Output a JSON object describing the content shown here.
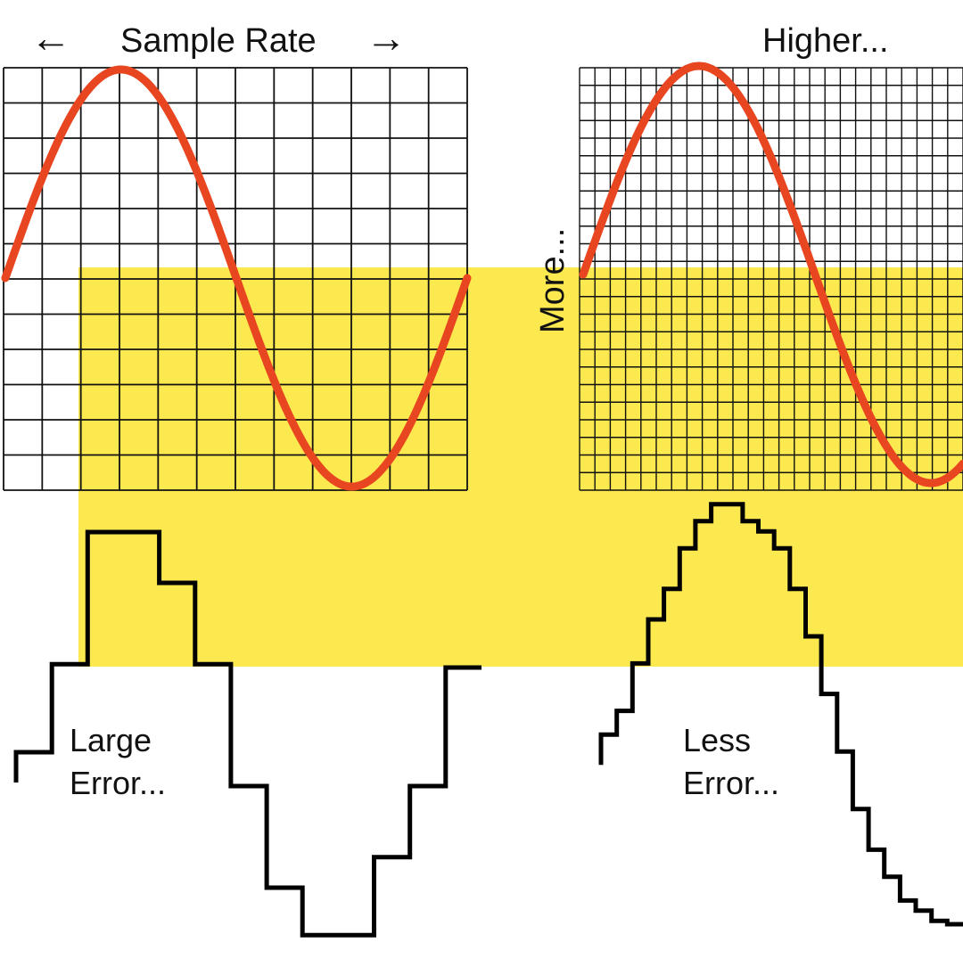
{
  "labels": {
    "sample_rate": "Sample Rate",
    "higher": "Higher...",
    "more": "More...",
    "large_error_line1": "Large",
    "large_error_line2": "Error...",
    "less_error_line1": "Less",
    "less_error_line2": "Error..."
  },
  "arrows": {
    "left": "←",
    "right": "→"
  },
  "colors": {
    "background": "#ffffff",
    "highlight_band": "#fce94f",
    "sine_wave": "#e84620",
    "grid_line": "#111111",
    "staircase": "#000000"
  },
  "panels": [
    {
      "name": "low-resolution",
      "grid_columns": 12,
      "grid_rows": 12,
      "wave_cycles": 1,
      "sample_levels": [
        -0.4,
        0.12,
        0.9,
        0.9,
        0.6,
        0.12,
        -0.6,
        -1.2,
        -1.48,
        -1.48,
        -1.02,
        -0.6,
        0.1
      ]
    },
    {
      "name": "high-resolution",
      "grid_columns": 25,
      "grid_rows": 24,
      "wave_cycles": 1,
      "sample_levels": [
        -0.38,
        -0.24,
        0.04,
        0.3,
        0.48,
        0.72,
        0.88,
        0.98,
        0.98,
        0.88,
        0.82,
        0.72,
        0.48,
        0.2,
        -0.14,
        -0.48,
        -0.82,
        -1.06,
        -1.22,
        -1.36,
        -1.42,
        -1.48,
        -1.5
      ]
    }
  ]
}
